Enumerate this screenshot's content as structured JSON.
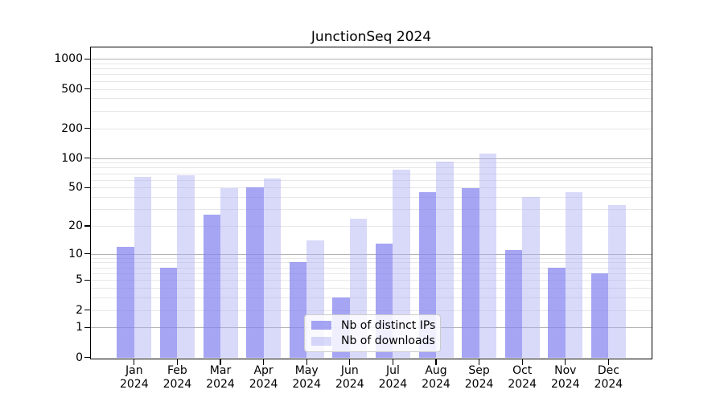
{
  "chart_data": {
    "type": "bar",
    "title": "JunctionSeq 2024",
    "categories": [
      "Jan",
      "Feb",
      "Mar",
      "Apr",
      "May",
      "Jun",
      "Jul",
      "Aug",
      "Sep",
      "Oct",
      "Nov",
      "Dec"
    ],
    "x_year": "2024",
    "series": [
      {
        "name": "Nb of distinct IPs",
        "key": "ips",
        "values": [
          12,
          7,
          26,
          50,
          8,
          3,
          13,
          45,
          49,
          11,
          7,
          6
        ]
      },
      {
        "name": "Nb of downloads",
        "key": "downloads",
        "values": [
          64,
          67,
          49,
          62,
          14,
          24,
          76,
          92,
          111,
          40,
          45,
          33
        ]
      }
    ],
    "y_scale": "log10(1+x)",
    "ylim": [
      0,
      1300
    ],
    "y_ticks": [
      0,
      1,
      2,
      5,
      10,
      20,
      50,
      100,
      200,
      500,
      1000
    ],
    "y_major_gridlines": [
      1,
      10,
      100,
      1000
    ],
    "y_minor_gridlines": [
      2,
      3,
      4,
      5,
      6,
      7,
      8,
      9,
      20,
      30,
      40,
      50,
      60,
      70,
      80,
      90,
      200,
      300,
      400,
      500,
      600,
      700,
      800,
      900
    ],
    "grid": true,
    "legend_position": "bottom-center"
  },
  "colors": {
    "ips_bar": "rgba(130,130,240,0.72)",
    "downloads_bar": "rgba(170,170,243,0.45)",
    "major_grid": "#b3b3b3",
    "minor_grid": "#e7e7e7",
    "axis": "#000000",
    "legend_border": "#cccccc",
    "legend_bg": "rgba(255,255,255,0.82)",
    "text": "#000000"
  }
}
